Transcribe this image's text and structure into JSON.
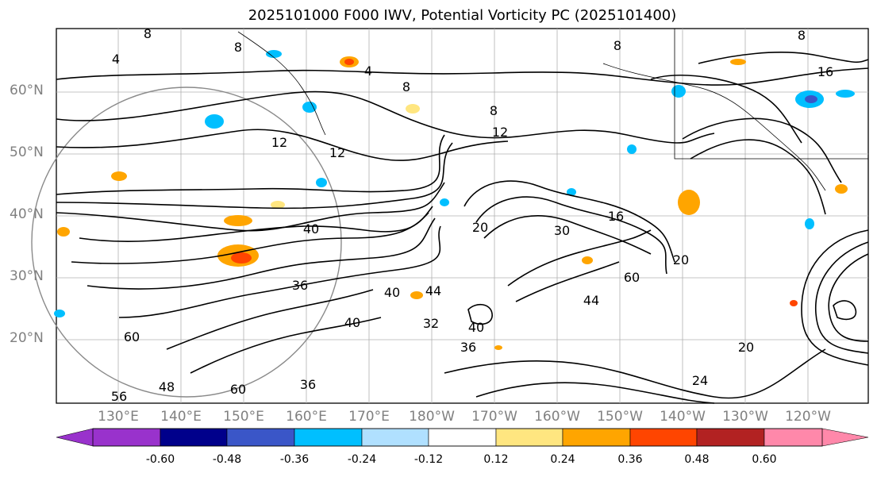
{
  "title": "2025101000 F000 IWV, Potential Vorticity PC (2025101400)",
  "lat_labels": [
    "60°N",
    "50°N",
    "40°N",
    "30°N",
    "20°N"
  ],
  "lon_labels": [
    "130°E",
    "140°E",
    "150°E",
    "160°E",
    "170°E",
    "180°W",
    "170°W",
    "160°W",
    "150°W",
    "140°W",
    "130°W",
    "120°W"
  ],
  "contour_labels": [
    "8",
    "8",
    "4",
    "4",
    "8",
    "8",
    "8",
    "8",
    "16",
    "12",
    "12",
    "12",
    "16",
    "20",
    "20",
    "36",
    "40",
    "40",
    "40",
    "44",
    "32",
    "36",
    "40",
    "44",
    "48",
    "56",
    "60",
    "60",
    "60",
    "24",
    "20",
    "30",
    "36"
  ],
  "colorbar": {
    "ticks": [
      "-0.60",
      "-0.48",
      "-0.36",
      "-0.24",
      "-0.12",
      "0.12",
      "0.24",
      "0.36",
      "0.48",
      "0.60"
    ],
    "colors": [
      "#9932cc",
      "#00008b",
      "#3a56c8",
      "#00bfff",
      "#b0e0ff",
      "#ffffff",
      "#ffe680",
      "#ffa500",
      "#ff4500",
      "#b22222",
      "#ff88aa"
    ]
  }
}
